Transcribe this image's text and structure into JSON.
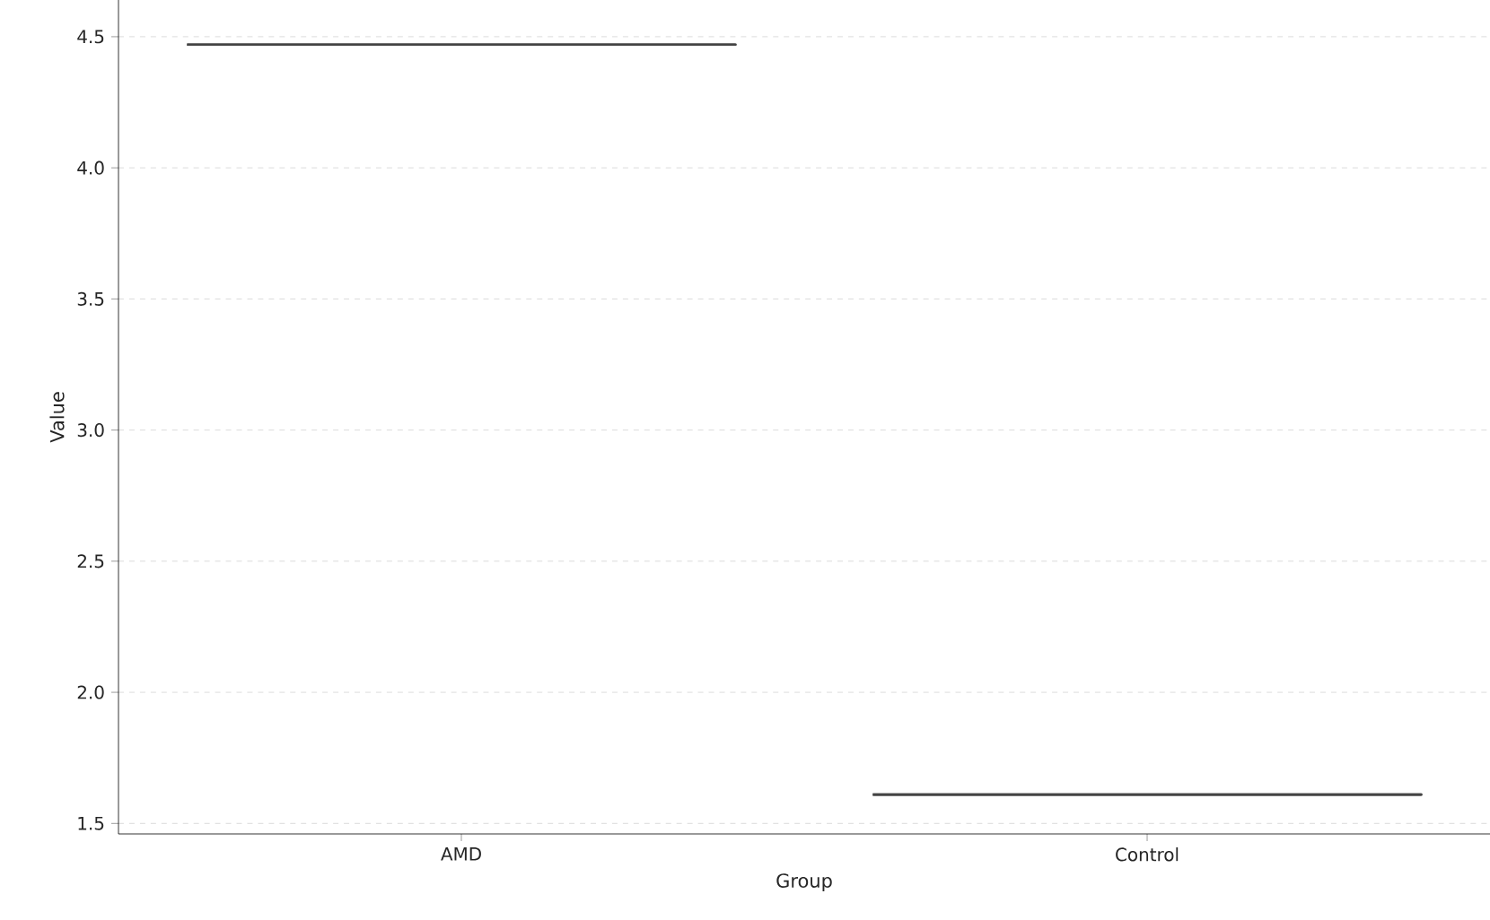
{
  "chart_data": {
    "type": "box",
    "xlabel": "Group",
    "ylabel": "Value",
    "categories": [
      "AMD",
      "Control"
    ],
    "boxes": [
      {
        "low": 4.47,
        "q1": 4.47,
        "median": 4.47,
        "q3": 4.47,
        "high": 4.47
      },
      {
        "low": 1.61,
        "q1": 1.61,
        "median": 1.61,
        "q3": 1.61,
        "high": 1.61
      }
    ],
    "color": "#444444",
    "ylim": [
      1.46,
      4.64
    ],
    "yticks": [
      {
        "value": 1.5,
        "label": "1.5"
      },
      {
        "value": 2,
        "label": "2.0"
      },
      {
        "value": 2.5,
        "label": "2.5"
      },
      {
        "value": 3,
        "label": "3.0"
      },
      {
        "value": 3.5,
        "label": "3.5"
      },
      {
        "value": 4,
        "label": "4.0"
      },
      {
        "value": 4.5,
        "label": "4.5"
      }
    ],
    "grid": "y"
  }
}
